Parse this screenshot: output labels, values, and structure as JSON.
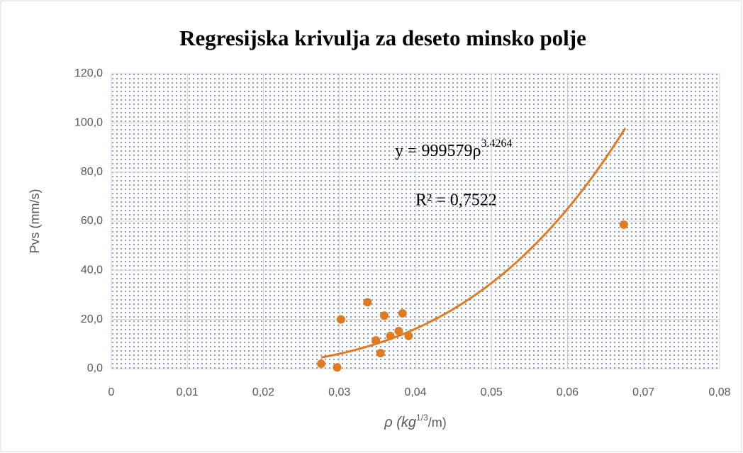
{
  "chart_data": {
    "type": "scatter",
    "title": "Regresijska krivulja za deseto minsko polje",
    "ylabel": "Pvs (mm/s)",
    "xlabel_parts": [
      "ρ (kg",
      "1/3",
      "/m)"
    ],
    "equation_parts": [
      "y = 999579ρ",
      "3.4264"
    ],
    "r_squared_label": "R² = 0,7522",
    "color": "#e07b20",
    "x": [
      0.0276,
      0.0297,
      0.0302,
      0.0337,
      0.0348,
      0.0354,
      0.0359,
      0.0367,
      0.0378,
      0.0383,
      0.0391,
      0.0674
    ],
    "values": [
      2.0,
      0.5,
      20.0,
      27.0,
      11.5,
      6.3,
      21.6,
      13.3,
      15.3,
      22.5,
      13.3,
      58.6
    ],
    "trendline": {
      "type": "power",
      "a": 999579,
      "b": 3.4264,
      "x_range": [
        0.0276,
        0.0676
      ]
    },
    "xlim": [
      0,
      0.08
    ],
    "xticks": [
      0,
      {
        "value": 0.01,
        "label": "0,01"
      },
      {
        "value": 0.02,
        "label": "0,02"
      },
      {
        "value": 0.03,
        "label": "0,03"
      },
      {
        "value": 0.04,
        "label": "0,04"
      },
      {
        "value": 0.05,
        "label": "0,05"
      },
      {
        "value": 0.06,
        "label": "0,06"
      },
      {
        "value": 0.07,
        "label": "0,07"
      },
      {
        "value": 0.08,
        "label": "0,08"
      }
    ],
    "ylim": [
      0,
      120
    ],
    "yticks": [
      {
        "value": 0,
        "label": "0,0"
      },
      {
        "value": 20,
        "label": "20,0"
      },
      {
        "value": 40,
        "label": "40,0"
      },
      {
        "value": 60,
        "label": "60,0"
      },
      {
        "value": 80,
        "label": "80,0"
      },
      {
        "value": 100,
        "label": "100,0"
      },
      {
        "value": 120,
        "label": "120,0"
      }
    ],
    "grid": true
  }
}
